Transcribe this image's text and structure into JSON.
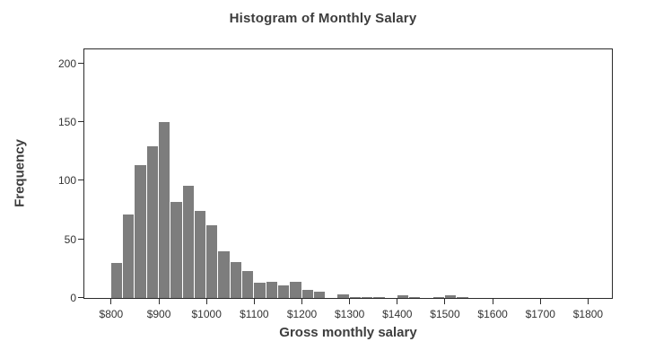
{
  "chart_data": {
    "type": "bar",
    "subtype": "histogram",
    "title": "Histogram of Monthly Salary",
    "xlabel": "Gross monthly salary",
    "ylabel": "Frequency",
    "bin_start": 800,
    "bin_width": 25,
    "frequencies": [
      30,
      71,
      113,
      129,
      150,
      82,
      96,
      74,
      62,
      40,
      31,
      23,
      13,
      14,
      11,
      14,
      7,
      5,
      0,
      3,
      1,
      1,
      1,
      0,
      2,
      1,
      0,
      1,
      2,
      1
    ],
    "x_ticks": [
      {
        "value": 800,
        "label": "$800"
      },
      {
        "value": 900,
        "label": "$900"
      },
      {
        "value": 1000,
        "label": "$1000"
      },
      {
        "value": 1100,
        "label": "$1100"
      },
      {
        "value": 1200,
        "label": "$1200"
      },
      {
        "value": 1300,
        "label": "$1300"
      },
      {
        "value": 1400,
        "label": "$1400"
      },
      {
        "value": 1500,
        "label": "$1500"
      },
      {
        "value": 1600,
        "label": "$1600"
      },
      {
        "value": 1700,
        "label": "$1700"
      },
      {
        "value": 1800,
        "label": "$1800"
      }
    ],
    "y_ticks": [
      {
        "value": 0,
        "label": "0"
      },
      {
        "value": 50,
        "label": "50"
      },
      {
        "value": 100,
        "label": "100"
      },
      {
        "value": 150,
        "label": "150"
      },
      {
        "value": 200,
        "label": "200"
      }
    ],
    "x_range": [
      743.75,
      1850
    ],
    "y_range": [
      0,
      212
    ],
    "grid": false,
    "legend": false,
    "bar_color": "#7d7d7d",
    "axis_color": "#2b2b2b",
    "text_color": "#3d3d3d"
  }
}
